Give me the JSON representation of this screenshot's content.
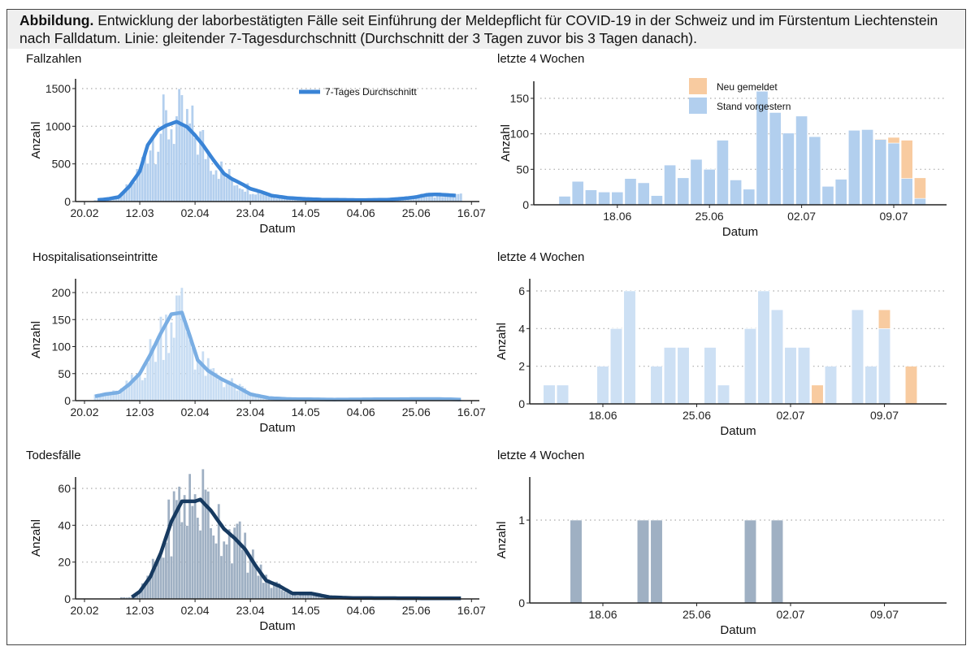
{
  "caption": {
    "bold": "Abbildung.",
    "text": " Entwicklung der laborbestätigten Fälle seit Einführung der Meldepflicht für COVID-19 in der Schweiz und im Fürstentum Liechtenstein nach Falldatum. Linie: gleitender 7-Tagesdurchschnitt (Durchschnitt der 3 Tagen zuvor bis 3 Tagen danach)."
  },
  "colors": {
    "cases_bar": "#b3cfee",
    "cases_line": "#3a84d6",
    "hosp_bar": "#c8ddf3",
    "hosp_line": "#7aaee3",
    "deaths_bar": "#9fb0c3",
    "deaths_line": "#173a60",
    "new_reported": "#f8cba0",
    "recent_blue": "#b2cfee",
    "recent_hosp": "#cde0f4"
  },
  "chart_data": [
    {
      "id": "cases_all",
      "type": "bar+line",
      "title": "Fallzahlen",
      "xlabel": "Datum",
      "ylabel": "Anzahl",
      "xticks": [
        "20.02",
        "12.03",
        "02.04",
        "23.04",
        "14.05",
        "04.06",
        "25.06",
        "16.07"
      ],
      "yticks": [
        0,
        500,
        1000,
        1500
      ],
      "ylim": [
        0,
        1580
      ],
      "grid": "horizontal dotted",
      "legend": {
        "label": "7-Tages Durchschnitt",
        "position": "top-right"
      },
      "bar_range": [
        "24.02",
        "12.07"
      ],
      "line_points": [
        [
          "25.02",
          20
        ],
        [
          "29.02",
          35
        ],
        [
          "04.03",
          60
        ],
        [
          "08.03",
          200
        ],
        [
          "12.03",
          400
        ],
        [
          "15.03",
          750
        ],
        [
          "19.03",
          950
        ],
        [
          "22.03",
          1010
        ],
        [
          "26.03",
          1060
        ],
        [
          "30.03",
          990
        ],
        [
          "02.04",
          880
        ],
        [
          "05.04",
          750
        ],
        [
          "09.04",
          550
        ],
        [
          "13.04",
          370
        ],
        [
          "16.04",
          300
        ],
        [
          "20.04",
          230
        ],
        [
          "23.04",
          170
        ],
        [
          "27.04",
          130
        ],
        [
          "01.05",
          80
        ],
        [
          "07.05",
          50
        ],
        [
          "14.05",
          35
        ],
        [
          "21.05",
          25
        ],
        [
          "04.06",
          20
        ],
        [
          "14.06",
          25
        ],
        [
          "20.06",
          40
        ],
        [
          "25.06",
          60
        ],
        [
          "29.06",
          90
        ],
        [
          "03.07",
          95
        ],
        [
          "10.07",
          80
        ]
      ]
    },
    {
      "id": "cases_recent",
      "type": "stacked-bar",
      "title": "letzte 4 Wochen",
      "xlabel": "Datum",
      "ylabel": "Anzahl",
      "xticks": [
        "18.06",
        "25.06",
        "02.07",
        "09.07"
      ],
      "yticks": [
        0,
        50,
        100,
        150
      ],
      "ylim": [
        0,
        175
      ],
      "legend": {
        "position": "top-center",
        "series": [
          "Neu gemeldet",
          "Stand vorgestern"
        ]
      },
      "dates": [
        "14.06",
        "15.06",
        "16.06",
        "17.06",
        "18.06",
        "19.06",
        "20.06",
        "21.06",
        "22.06",
        "23.06",
        "24.06",
        "25.06",
        "26.06",
        "27.06",
        "28.06",
        "29.06",
        "30.06",
        "01.07",
        "02.07",
        "03.07",
        "04.07",
        "05.07",
        "06.07",
        "07.07",
        "08.07",
        "09.07",
        "10.07",
        "11.07"
      ],
      "series": [
        {
          "name": "Stand vorgestern",
          "values": [
            12,
            33,
            21,
            18,
            18,
            37,
            31,
            13,
            56,
            38,
            64,
            50,
            91,
            35,
            22,
            160,
            130,
            101,
            125,
            96,
            26,
            36,
            105,
            106,
            92,
            87,
            37,
            9
          ]
        },
        {
          "name": "Neu gemeldet",
          "values": [
            0,
            0,
            0,
            0,
            0,
            0,
            0,
            0,
            0,
            0,
            0,
            0,
            0,
            0,
            0,
            0,
            0,
            0,
            0,
            0,
            0,
            0,
            0,
            0,
            1,
            8,
            54,
            29
          ]
        }
      ]
    },
    {
      "id": "hosp_all",
      "type": "bar+line",
      "title": "Hospitalisationseintritte",
      "xlabel": "Datum",
      "ylabel": "Anzahl",
      "xticks": [
        "20.02",
        "12.03",
        "02.04",
        "23.04",
        "14.05",
        "04.06",
        "25.06",
        "16.07"
      ],
      "yticks": [
        0,
        50,
        100,
        150,
        200
      ],
      "ylim": [
        0,
        210
      ],
      "grid": "horizontal dotted",
      "bar_range": [
        "24.02",
        "12.07"
      ],
      "line_points": [
        [
          "24.02",
          8
        ],
        [
          "28.02",
          12
        ],
        [
          "04.03",
          15
        ],
        [
          "08.03",
          30
        ],
        [
          "12.03",
          50
        ],
        [
          "16.03",
          85
        ],
        [
          "20.03",
          125
        ],
        [
          "24.03",
          160
        ],
        [
          "28.03",
          163
        ],
        [
          "31.03",
          120
        ],
        [
          "03.04",
          75
        ],
        [
          "07.04",
          55
        ],
        [
          "12.04",
          40
        ],
        [
          "17.04",
          28
        ],
        [
          "23.04",
          12
        ],
        [
          "30.04",
          5
        ],
        [
          "07.05",
          3
        ],
        [
          "25.05",
          2
        ],
        [
          "25.06",
          3
        ],
        [
          "04.07",
          3
        ],
        [
          "12.07",
          2
        ]
      ]
    },
    {
      "id": "hosp_recent",
      "type": "stacked-bar",
      "title": "letzte 4 Wochen",
      "xlabel": "Datum",
      "ylabel": "Anzahl",
      "xticks": [
        "18.06",
        "25.06",
        "02.07",
        "09.07"
      ],
      "yticks": [
        0,
        2,
        4,
        6
      ],
      "ylim": [
        0,
        6.6
      ],
      "dates": [
        "14.06",
        "15.06",
        "16.06",
        "17.06",
        "18.06",
        "19.06",
        "20.06",
        "21.06",
        "22.06",
        "23.06",
        "24.06",
        "25.06",
        "26.06",
        "27.06",
        "28.06",
        "29.06",
        "30.06",
        "01.07",
        "02.07",
        "03.07",
        "04.07",
        "05.07",
        "06.07",
        "07.07",
        "08.07",
        "09.07",
        "10.07",
        "11.07"
      ],
      "series": [
        {
          "name": "Stand vorgestern",
          "values": [
            1,
            1,
            0,
            0,
            2,
            4,
            6,
            0,
            2,
            3,
            3,
            0,
            3,
            1,
            0,
            4,
            6,
            5,
            3,
            3,
            0,
            2,
            0,
            5,
            2,
            4,
            0,
            0
          ]
        },
        {
          "name": "Neu gemeldet",
          "values": [
            0,
            0,
            0,
            0,
            0,
            0,
            0,
            0,
            0,
            0,
            0,
            0,
            0,
            0,
            0,
            0,
            0,
            0,
            0,
            0,
            1,
            0,
            0,
            0,
            0,
            1,
            0,
            2
          ]
        }
      ]
    },
    {
      "id": "deaths_all",
      "type": "bar+line",
      "title": "Todesfälle",
      "xlabel": "Datum",
      "ylabel": "Anzahl",
      "xticks": [
        "20.02",
        "12.03",
        "02.04",
        "23.04",
        "14.05",
        "04.06",
        "25.06",
        "16.07"
      ],
      "yticks": [
        0,
        20,
        40,
        60
      ],
      "ylim": [
        0,
        65
      ],
      "grid": "horizontal dotted",
      "bar_range": [
        "05.03",
        "12.07"
      ],
      "line_points": [
        [
          "09.03",
          1
        ],
        [
          "12.03",
          4
        ],
        [
          "16.03",
          12
        ],
        [
          "20.03",
          25
        ],
        [
          "24.03",
          42
        ],
        [
          "28.03",
          53
        ],
        [
          "02.04",
          53
        ],
        [
          "04.04",
          54
        ],
        [
          "08.04",
          48
        ],
        [
          "13.04",
          38
        ],
        [
          "17.04",
          33
        ],
        [
          "21.04",
          27
        ],
        [
          "25.04",
          18
        ],
        [
          "29.04",
          10
        ],
        [
          "04.05",
          7
        ],
        [
          "09.05",
          3
        ],
        [
          "16.05",
          3
        ],
        [
          "23.05",
          1
        ],
        [
          "01.06",
          0.5
        ],
        [
          "12.07",
          0.3
        ]
      ]
    },
    {
      "id": "deaths_recent",
      "type": "bar",
      "title": "letzte 4 Wochen",
      "xlabel": "Datum",
      "ylabel": "Anzahl",
      "xticks": [
        "18.06",
        "25.06",
        "02.07",
        "09.07"
      ],
      "yticks": [
        0,
        1
      ],
      "ylim": [
        0,
        1.5
      ],
      "dates": [
        "14.06",
        "15.06",
        "16.06",
        "17.06",
        "18.06",
        "19.06",
        "20.06",
        "21.06",
        "22.06",
        "23.06",
        "24.06",
        "25.06",
        "26.06",
        "27.06",
        "28.06",
        "29.06",
        "30.06",
        "01.07",
        "02.07",
        "03.07",
        "04.07",
        "05.07",
        "06.07",
        "07.07",
        "08.07",
        "09.07",
        "10.07",
        "11.07"
      ],
      "series": [
        {
          "name": "Todesfälle",
          "values": [
            0,
            0,
            1,
            0,
            0,
            0,
            0,
            1,
            1,
            0,
            0,
            0,
            0,
            0,
            0,
            1,
            0,
            1,
            0,
            0,
            0,
            0,
            0,
            0,
            0,
            0,
            0,
            0
          ]
        }
      ]
    }
  ]
}
